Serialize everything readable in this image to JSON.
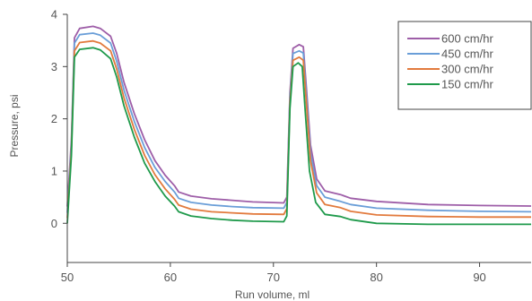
{
  "chart_data": {
    "type": "line",
    "title": "",
    "xlabel": "Run volume, ml",
    "ylabel": "Pressure, psi",
    "xlim": [
      50,
      95
    ],
    "ylim": [
      -0.75,
      4
    ],
    "x_ticks": [
      50,
      60,
      70,
      80,
      90
    ],
    "y_ticks": [
      0,
      1,
      2,
      3,
      4
    ],
    "grid": false,
    "legend_position": "top-right",
    "series": [
      {
        "name": "600 cm/hr",
        "color": "#9e5ea8",
        "points": [
          [
            50,
            0.32
          ],
          [
            50.4,
            1.6
          ],
          [
            50.7,
            3.55
          ],
          [
            51.2,
            3.73
          ],
          [
            52.5,
            3.77
          ],
          [
            53.2,
            3.73
          ],
          [
            54.2,
            3.58
          ],
          [
            54.8,
            3.25
          ],
          [
            55.5,
            2.7
          ],
          [
            56.5,
            2.1
          ],
          [
            57.5,
            1.6
          ],
          [
            58.5,
            1.2
          ],
          [
            59.5,
            0.92
          ],
          [
            60.4,
            0.72
          ],
          [
            60.8,
            0.6
          ],
          [
            62,
            0.52
          ],
          [
            64,
            0.47
          ],
          [
            66,
            0.44
          ],
          [
            68,
            0.41
          ],
          [
            71,
            0.39
          ],
          [
            71.3,
            0.5
          ],
          [
            71.6,
            2.5
          ],
          [
            71.9,
            3.35
          ],
          [
            72.5,
            3.42
          ],
          [
            72.9,
            3.38
          ],
          [
            73.2,
            2.6
          ],
          [
            73.6,
            1.5
          ],
          [
            74.2,
            0.85
          ],
          [
            75,
            0.62
          ],
          [
            76.5,
            0.55
          ],
          [
            77.5,
            0.48
          ],
          [
            80,
            0.42
          ],
          [
            85,
            0.36
          ],
          [
            90,
            0.34
          ],
          [
            95,
            0.33
          ]
        ]
      },
      {
        "name": "450 cm/hr",
        "color": "#6a9ed8",
        "points": [
          [
            50,
            0.2
          ],
          [
            50.4,
            1.5
          ],
          [
            50.7,
            3.45
          ],
          [
            51.2,
            3.61
          ],
          [
            52.5,
            3.64
          ],
          [
            53.2,
            3.6
          ],
          [
            54.2,
            3.45
          ],
          [
            54.8,
            3.1
          ],
          [
            55.5,
            2.55
          ],
          [
            56.5,
            1.95
          ],
          [
            57.5,
            1.45
          ],
          [
            58.5,
            1.07
          ],
          [
            59.5,
            0.8
          ],
          [
            60.4,
            0.6
          ],
          [
            60.8,
            0.48
          ],
          [
            62,
            0.4
          ],
          [
            64,
            0.35
          ],
          [
            66,
            0.32
          ],
          [
            68,
            0.3
          ],
          [
            71,
            0.29
          ],
          [
            71.3,
            0.4
          ],
          [
            71.6,
            2.4
          ],
          [
            71.9,
            3.25
          ],
          [
            72.5,
            3.3
          ],
          [
            72.9,
            3.26
          ],
          [
            73.2,
            2.45
          ],
          [
            73.6,
            1.35
          ],
          [
            74.2,
            0.72
          ],
          [
            75,
            0.5
          ],
          [
            76.5,
            0.42
          ],
          [
            77.5,
            0.36
          ],
          [
            80,
            0.29
          ],
          [
            85,
            0.25
          ],
          [
            90,
            0.23
          ],
          [
            95,
            0.22
          ]
        ]
      },
      {
        "name": "300 cm/hr",
        "color": "#e27a3d",
        "points": [
          [
            50,
            0.1
          ],
          [
            50.4,
            1.4
          ],
          [
            50.7,
            3.3
          ],
          [
            51.2,
            3.46
          ],
          [
            52.5,
            3.49
          ],
          [
            53.2,
            3.45
          ],
          [
            54.2,
            3.3
          ],
          [
            54.8,
            2.95
          ],
          [
            55.5,
            2.4
          ],
          [
            56.5,
            1.8
          ],
          [
            57.5,
            1.3
          ],
          [
            58.5,
            0.93
          ],
          [
            59.5,
            0.66
          ],
          [
            60.4,
            0.46
          ],
          [
            60.8,
            0.35
          ],
          [
            62,
            0.27
          ],
          [
            64,
            0.22
          ],
          [
            66,
            0.2
          ],
          [
            68,
            0.18
          ],
          [
            71,
            0.17
          ],
          [
            71.3,
            0.28
          ],
          [
            71.6,
            2.3
          ],
          [
            71.9,
            3.12
          ],
          [
            72.5,
            3.18
          ],
          [
            72.9,
            3.12
          ],
          [
            73.2,
            2.3
          ],
          [
            73.6,
            1.2
          ],
          [
            74.2,
            0.58
          ],
          [
            75,
            0.36
          ],
          [
            76.5,
            0.3
          ],
          [
            77.5,
            0.23
          ],
          [
            80,
            0.16
          ],
          [
            85,
            0.13
          ],
          [
            90,
            0.12
          ],
          [
            95,
            0.12
          ]
        ]
      },
      {
        "name": "150 cm/hr",
        "color": "#1f9a4b",
        "points": [
          [
            50,
            0.0
          ],
          [
            50.4,
            1.3
          ],
          [
            50.7,
            3.18
          ],
          [
            51.2,
            3.33
          ],
          [
            52.5,
            3.36
          ],
          [
            53.2,
            3.32
          ],
          [
            54.2,
            3.15
          ],
          [
            54.8,
            2.8
          ],
          [
            55.5,
            2.25
          ],
          [
            56.5,
            1.65
          ],
          [
            57.5,
            1.15
          ],
          [
            58.5,
            0.8
          ],
          [
            59.5,
            0.52
          ],
          [
            60.4,
            0.33
          ],
          [
            60.8,
            0.22
          ],
          [
            62,
            0.14
          ],
          [
            64,
            0.09
          ],
          [
            66,
            0.06
          ],
          [
            68,
            0.04
          ],
          [
            71,
            0.03
          ],
          [
            71.3,
            0.14
          ],
          [
            71.6,
            2.2
          ],
          [
            71.9,
            3.0
          ],
          [
            72.4,
            3.07
          ],
          [
            72.8,
            3.0
          ],
          [
            73.1,
            2.1
          ],
          [
            73.5,
            1.0
          ],
          [
            74.1,
            0.4
          ],
          [
            75,
            0.17
          ],
          [
            76.5,
            0.13
          ],
          [
            77.5,
            0.07
          ],
          [
            80,
            0.0
          ],
          [
            85,
            -0.02
          ],
          [
            90,
            -0.02
          ],
          [
            95,
            -0.02
          ]
        ]
      }
    ]
  }
}
